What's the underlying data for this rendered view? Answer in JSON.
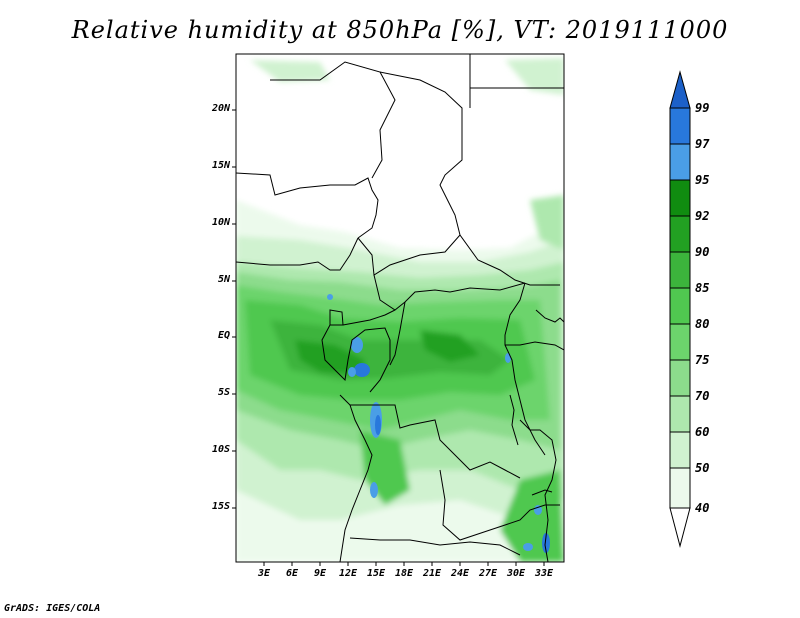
{
  "title": "Relative humidity at 850hPa [%], VT: 2019111000",
  "credit": "GrADS: IGES/COLA",
  "map": {
    "lat_labels": [
      "20N",
      "15N",
      "10N",
      "5N",
      "EQ",
      "5S",
      "10S",
      "15S"
    ],
    "lon_labels": [
      "3E",
      "6E",
      "9E",
      "12E",
      "15E",
      "18E",
      "21E",
      "24E",
      "27E",
      "30E",
      "33E"
    ]
  },
  "colorbar": {
    "levels": [
      "99",
      "97",
      "95",
      "92",
      "90",
      "85",
      "80",
      "75",
      "70",
      "60",
      "50",
      "40"
    ],
    "colors": [
      "#1c60c8",
      "#2878dc",
      "#4a9ee6",
      "#108c10",
      "#22a022",
      "#3cb43c",
      "#50c850",
      "#6cd46c",
      "#8cdc8c",
      "#aee8ae",
      "#d0f2d0",
      "#ecfaec",
      "#ffffff"
    ]
  }
}
